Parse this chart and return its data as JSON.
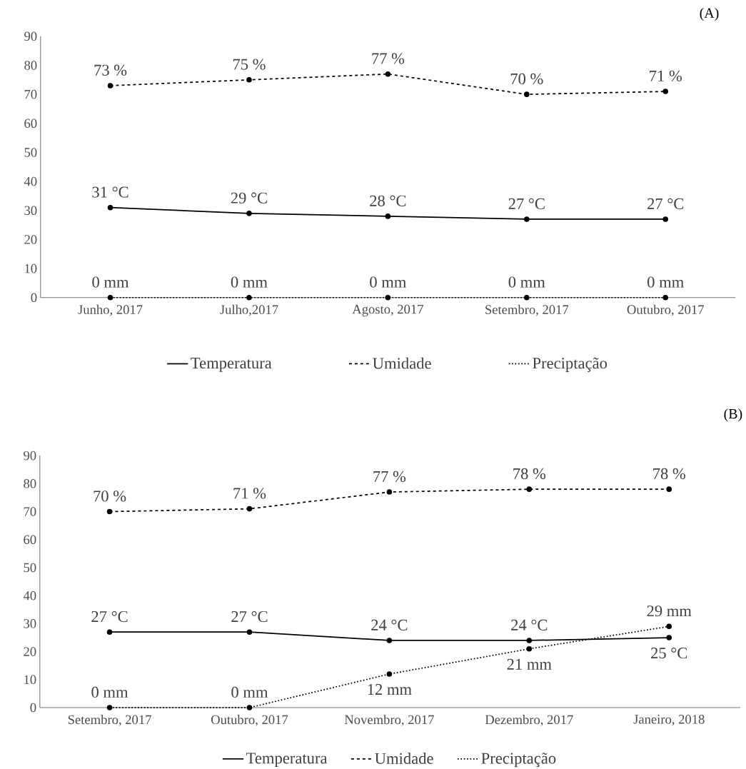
{
  "chart_data": [
    {
      "type": "line",
      "title": "(A)",
      "categories": [
        "Junho, 2017",
        "Julho,2017",
        "Agosto, 2017",
        "Setembro, 2017",
        "Outubro, 2017"
      ],
      "ylim": [
        0,
        90
      ],
      "yticks": [
        0,
        10,
        20,
        30,
        40,
        50,
        60,
        70,
        80,
        90
      ],
      "grid": false,
      "legend": "bottom",
      "marker": "circle",
      "series": [
        {
          "name": "Temperatura",
          "color": "#000000",
          "line_style": "solid",
          "values": [
            31,
            29,
            28,
            27,
            27
          ],
          "value_labels": [
            "31 °C",
            "29 °C",
            "28 °C",
            "27 °C",
            "27 °C"
          ]
        },
        {
          "name": "Umidade",
          "color": "#000000",
          "line_style": "dashed",
          "values": [
            73,
            75,
            77,
            70,
            71
          ],
          "value_labels": [
            "73 %",
            "75 %",
            "77 %",
            "70 %",
            "71 %"
          ]
        },
        {
          "name": "Preciptação",
          "color": "#000000",
          "line_style": "dotted",
          "values": [
            0,
            0,
            0,
            0,
            0
          ],
          "value_labels": [
            "0 mm",
            "0 mm",
            "0 mm",
            "0 mm",
            "0 mm"
          ]
        }
      ]
    },
    {
      "type": "line",
      "title": "(B)",
      "categories": [
        "Setembro, 2017",
        "Outubro, 2017",
        "Novembro, 2017",
        "Dezembro, 2017",
        "Janeiro, 2018"
      ],
      "ylim": [
        0,
        90
      ],
      "yticks": [
        0,
        10,
        20,
        30,
        40,
        50,
        60,
        70,
        80,
        90
      ],
      "grid": false,
      "legend": "bottom",
      "marker": "circle",
      "series": [
        {
          "name": "Temperatura",
          "color": "#000000",
          "line_style": "solid",
          "values": [
            27,
            27,
            24,
            24,
            25
          ],
          "value_labels": [
            "27 °C",
            "27 °C",
            "24 °C",
            "24 °C",
            "25 °C"
          ]
        },
        {
          "name": "Umidade",
          "color": "#000000",
          "line_style": "dashed",
          "values": [
            70,
            71,
            77,
            78,
            78
          ],
          "value_labels": [
            "70 %",
            "71 %",
            "77 %",
            "78 %",
            "78 %"
          ]
        },
        {
          "name": "Preciptação",
          "color": "#000000",
          "line_style": "dotted",
          "values": [
            0,
            0,
            12,
            21,
            29
          ],
          "value_labels": [
            "0 mm",
            "0 mm",
            "12 mm",
            "21 mm",
            "29 mm"
          ]
        }
      ]
    }
  ]
}
